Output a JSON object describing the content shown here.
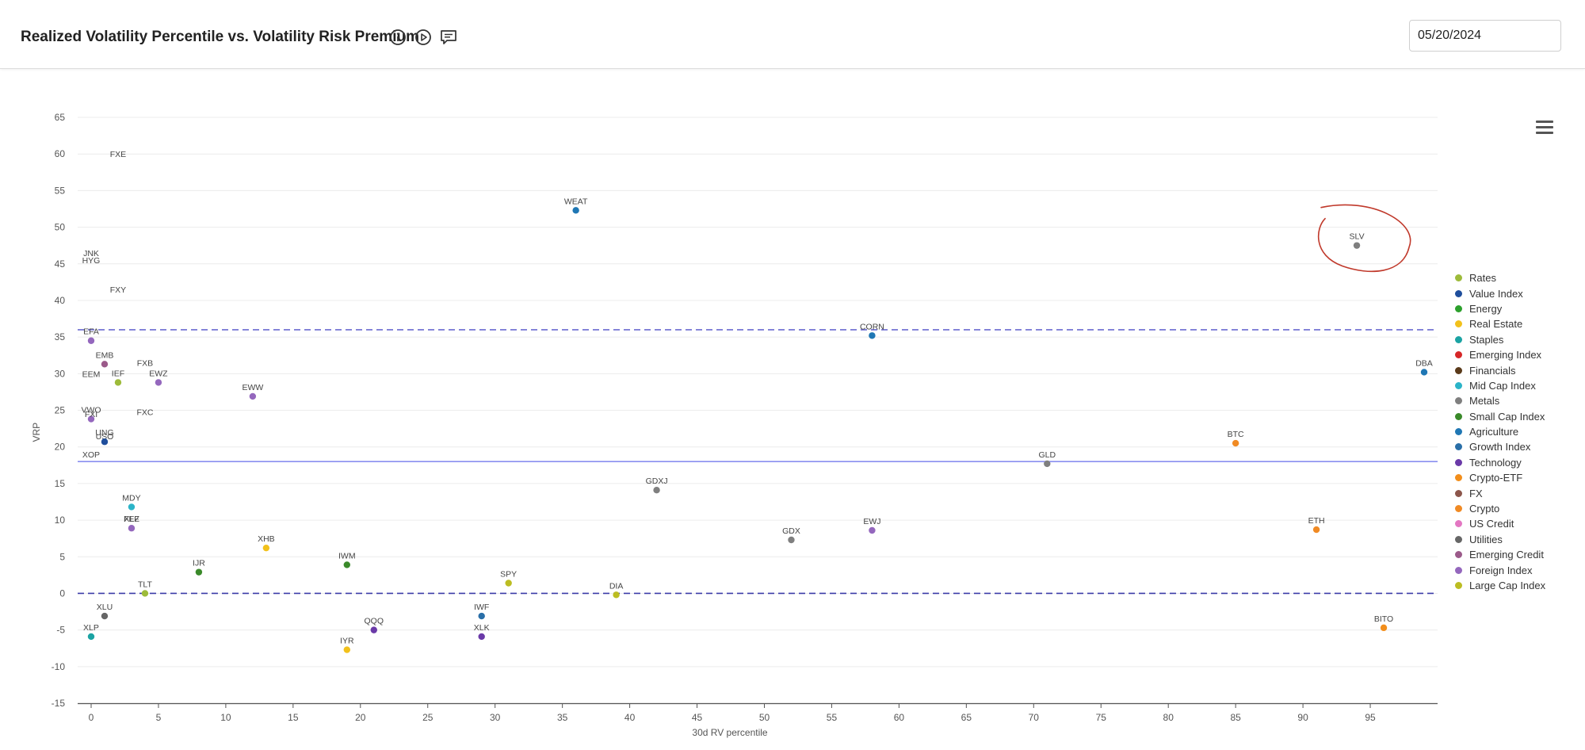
{
  "header": {
    "title": "Realized Volatility Percentile vs. Volatility Risk Premium",
    "date_value": "05/20/2024",
    "icons": [
      "info-icon",
      "play-icon",
      "comment-icon"
    ]
  },
  "chart_data": {
    "type": "scatter",
    "title": "",
    "xlabel": "30d RV percentile",
    "ylabel": "VRP",
    "xlim": [
      -1,
      100
    ],
    "ylim": [
      -15,
      65
    ],
    "x_ticks": [
      0,
      5,
      10,
      15,
      20,
      25,
      30,
      35,
      40,
      45,
      50,
      55,
      60,
      65,
      70,
      75,
      80,
      85,
      90,
      95
    ],
    "y_ticks": [
      65,
      60,
      55,
      50,
      45,
      40,
      35,
      30,
      25,
      20,
      15,
      10,
      5,
      0,
      -5,
      -10,
      -15
    ],
    "grid": true,
    "legend_position": "right",
    "reference_lines": [
      {
        "y": 36,
        "style": "dashed",
        "color": "#6b6bd1"
      },
      {
        "y": 18,
        "style": "solid",
        "color": "#8a8ff0"
      },
      {
        "y": 0,
        "style": "dashed",
        "color": "#3b3ba8"
      }
    ],
    "categories": [
      {
        "name": "Rates",
        "color": "#9dbb3a"
      },
      {
        "name": "Value Index",
        "color": "#1f4e9c"
      },
      {
        "name": "Energy",
        "color": "#2ca02c"
      },
      {
        "name": "Real Estate",
        "color": "#f2c11b"
      },
      {
        "name": "Staples",
        "color": "#1ba3a3"
      },
      {
        "name": "Emerging Index",
        "color": "#d62728"
      },
      {
        "name": "Financials",
        "color": "#5a3a1a"
      },
      {
        "name": "Mid Cap Index",
        "color": "#2bb4c8"
      },
      {
        "name": "Metals",
        "color": "#7f7f7f"
      },
      {
        "name": "Small Cap Index",
        "color": "#3a8a2a"
      },
      {
        "name": "Agriculture",
        "color": "#1f77b4"
      },
      {
        "name": "Growth Index",
        "color": "#2a6fa8"
      },
      {
        "name": "Technology",
        "color": "#6a3aa8"
      },
      {
        "name": "Crypto-ETF",
        "color": "#f28e1b"
      },
      {
        "name": "FX",
        "color": "#8c564b"
      },
      {
        "name": "Crypto",
        "color": "#f08a24"
      },
      {
        "name": "US Credit",
        "color": "#e377c2"
      },
      {
        "name": "Utilities",
        "color": "#666666"
      },
      {
        "name": "Emerging Credit",
        "color": "#9b5a8a"
      },
      {
        "name": "Foreign Index",
        "color": "#9467bd"
      },
      {
        "name": "Large Cap Index",
        "color": "#bcbd22"
      }
    ],
    "points": [
      {
        "label": "FXE",
        "x": 2,
        "y": 60,
        "category": "FX",
        "marker": false
      },
      {
        "label": "WEAT",
        "x": 36,
        "y": 52.3,
        "category": "Agriculture",
        "marker": true
      },
      {
        "label": "SLV",
        "x": 94,
        "y": 47.5,
        "category": "Metals",
        "marker": true
      },
      {
        "label": "JNK",
        "x": 0,
        "y": 46.5,
        "category": "US Credit",
        "marker": false
      },
      {
        "label": "HYG",
        "x": 0,
        "y": 45.5,
        "category": "US Credit",
        "marker": false
      },
      {
        "label": "FXY",
        "x": 2,
        "y": 41.5,
        "category": "FX",
        "marker": false
      },
      {
        "label": "EFA",
        "x": 0,
        "y": 34.5,
        "category": "Foreign Index",
        "marker": true
      },
      {
        "label": "CORN",
        "x": 58,
        "y": 35.2,
        "category": "Agriculture",
        "marker": true
      },
      {
        "label": "EMB",
        "x": 1,
        "y": 31.3,
        "category": "Emerging Credit",
        "marker": true
      },
      {
        "label": "FXB",
        "x": 4,
        "y": 31.5,
        "category": "FX",
        "marker": false
      },
      {
        "label": "EEM",
        "x": 0,
        "y": 30,
        "category": "Emerging Index",
        "marker": false
      },
      {
        "label": "IEF",
        "x": 2,
        "y": 28.8,
        "category": "Rates",
        "marker": true
      },
      {
        "label": "EWZ",
        "x": 5,
        "y": 28.8,
        "category": "Foreign Index",
        "marker": true
      },
      {
        "label": "DBA",
        "x": 99,
        "y": 30.2,
        "category": "Agriculture",
        "marker": true
      },
      {
        "label": "EWW",
        "x": 12,
        "y": 26.9,
        "category": "Foreign Index",
        "marker": true
      },
      {
        "label": "VWO",
        "x": 0,
        "y": 23.8,
        "category": "Foreign Index",
        "marker": true
      },
      {
        "label": "FXI",
        "x": 0,
        "y": 24.5,
        "category": "Foreign Index",
        "marker": false
      },
      {
        "label": "FXC",
        "x": 4,
        "y": 24.8,
        "category": "FX",
        "marker": false
      },
      {
        "label": "USO",
        "x": 1,
        "y": 21.5,
        "category": "Energy",
        "marker": false
      },
      {
        "label": "UNG",
        "x": 1,
        "y": 20.7,
        "category": "Value Index",
        "marker": true
      },
      {
        "label": "BTC",
        "x": 85,
        "y": 20.5,
        "category": "Crypto",
        "marker": true
      },
      {
        "label": "XOP",
        "x": 0,
        "y": 19,
        "category": "Energy",
        "marker": false
      },
      {
        "label": "GLD",
        "x": 71,
        "y": 17.7,
        "category": "Metals",
        "marker": true
      },
      {
        "label": "GDXJ",
        "x": 42,
        "y": 14.1,
        "category": "Metals",
        "marker": true
      },
      {
        "label": "MDY",
        "x": 3,
        "y": 11.8,
        "category": "Mid Cap Index",
        "marker": true
      },
      {
        "label": "XLF",
        "x": 3,
        "y": 10.2,
        "category": "Financials",
        "marker": false
      },
      {
        "label": "FEZ",
        "x": 3,
        "y": 8.9,
        "category": "Foreign Index",
        "marker": true
      },
      {
        "label": "EWJ",
        "x": 58,
        "y": 8.6,
        "category": "Foreign Index",
        "marker": true
      },
      {
        "label": "ETH",
        "x": 91,
        "y": 8.7,
        "category": "Crypto",
        "marker": true
      },
      {
        "label": "GDX",
        "x": 52,
        "y": 7.3,
        "category": "Metals",
        "marker": true
      },
      {
        "label": "XHB",
        "x": 13,
        "y": 6.2,
        "category": "Real Estate",
        "marker": true
      },
      {
        "label": "IWM",
        "x": 19,
        "y": 3.9,
        "category": "Small Cap Index",
        "marker": true
      },
      {
        "label": "IJR",
        "x": 8,
        "y": 2.9,
        "category": "Small Cap Index",
        "marker": true
      },
      {
        "label": "SPY",
        "x": 31,
        "y": 1.4,
        "category": "Large Cap Index",
        "marker": true
      },
      {
        "label": "TLT",
        "x": 4,
        "y": 0,
        "category": "Rates",
        "marker": true
      },
      {
        "label": "DIA",
        "x": 39,
        "y": -0.2,
        "category": "Large Cap Index",
        "marker": true
      },
      {
        "label": "XLU",
        "x": 1,
        "y": -3.1,
        "category": "Utilities",
        "marker": true
      },
      {
        "label": "IWF",
        "x": 29,
        "y": -3.1,
        "category": "Growth Index",
        "marker": true
      },
      {
        "label": "QQQ",
        "x": 21,
        "y": -5,
        "category": "Technology",
        "marker": true
      },
      {
        "label": "XLK",
        "x": 29,
        "y": -5.9,
        "category": "Technology",
        "marker": true
      },
      {
        "label": "XLP",
        "x": 0,
        "y": -5.9,
        "category": "Staples",
        "marker": true
      },
      {
        "label": "IYR",
        "x": 19,
        "y": -7.7,
        "category": "Real Estate",
        "marker": true
      },
      {
        "label": "BITO",
        "x": 96,
        "y": -4.7,
        "category": "Crypto-ETF",
        "marker": true
      }
    ],
    "annotation": {
      "type": "hand-drawn-circle",
      "target": "SLV",
      "color": "#c0392b"
    }
  }
}
